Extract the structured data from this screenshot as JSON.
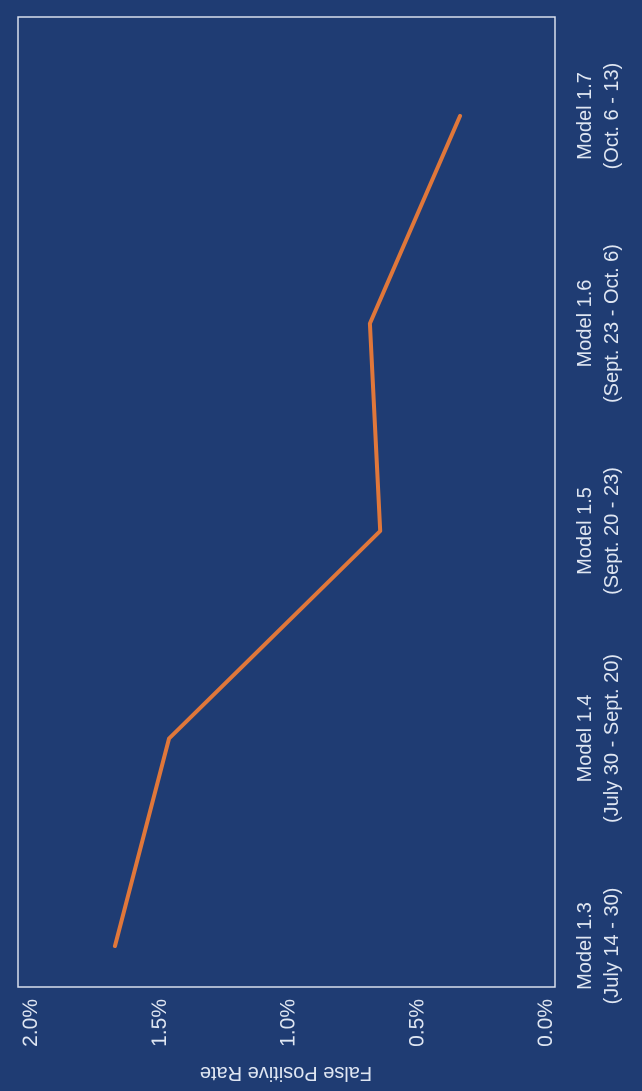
{
  "chart_data": {
    "type": "line",
    "ylabel": "False Positive Rate",
    "xlabel": "",
    "ylim": [
      0,
      0.02
    ],
    "y_ticks": [
      {
        "value": 0.0,
        "label": "0.0%"
      },
      {
        "value": 0.005,
        "label": "0.5%"
      },
      {
        "value": 0.01,
        "label": "1.0%"
      },
      {
        "value": 0.015,
        "label": "1.5%"
      },
      {
        "value": 0.02,
        "label": "2.0%"
      }
    ],
    "categories": [
      {
        "model": "Model 1.3",
        "period": "(July 14 - 30)"
      },
      {
        "model": "Model 1.4",
        "period": "(July 30 - Sept. 20)"
      },
      {
        "model": "Model 1.5",
        "period": "(Sept. 20 - 23)"
      },
      {
        "model": "Model 1.6",
        "period": "(Sept. 23 - Oct. 6)"
      },
      {
        "model": "Model 1.7",
        "period": "(Oct. 6 - 13)"
      }
    ],
    "series": [
      {
        "values": [
          0.0167,
          0.0146,
          0.0064,
          0.0068,
          0.0033
        ],
        "color": "#e0773a"
      }
    ],
    "grid": false,
    "legend": "none",
    "colors": {
      "background": "#1f3c73",
      "frame": "#d8dfec",
      "text": "#dfe6f2"
    }
  }
}
